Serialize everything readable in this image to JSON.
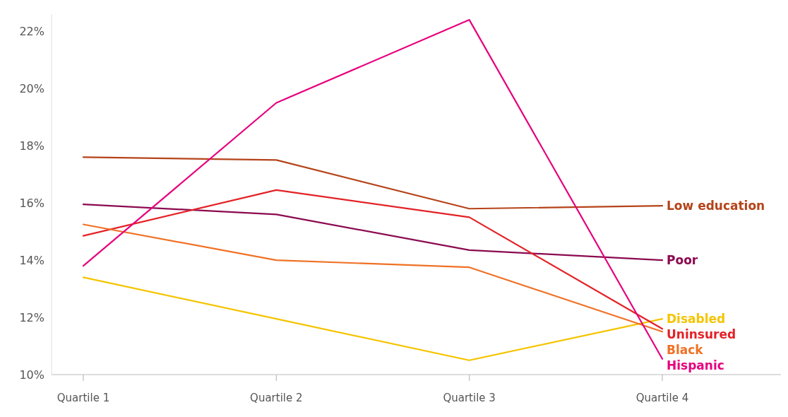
{
  "chart_data": {
    "type": "line",
    "categories": [
      "Quartile 1",
      "Quartile 2",
      "Quartile 3",
      "Quartile 4"
    ],
    "ylim": [
      10,
      22.6
    ],
    "yticks": [
      {
        "value": 10,
        "label": "10%"
      },
      {
        "value": 12,
        "label": "12%"
      },
      {
        "value": 14,
        "label": "14%"
      },
      {
        "value": 16,
        "label": "16%"
      },
      {
        "value": 18,
        "label": "18%"
      },
      {
        "value": 20,
        "label": "20%"
      },
      {
        "value": 22,
        "label": "22%"
      }
    ],
    "grid": false,
    "marker": "none",
    "line_style": "solid",
    "series": [
      {
        "name": "Low education",
        "color": "#b5441a",
        "values": [
          17.6,
          17.5,
          15.8,
          15.9
        ]
      },
      {
        "name": "Poor",
        "color": "#8b0a50",
        "values": [
          15.95,
          15.6,
          14.35,
          14.0
        ]
      },
      {
        "name": "Disabled",
        "color": "#f5c400",
        "values": [
          13.4,
          11.95,
          10.5,
          11.95
        ]
      },
      {
        "name": "Uninsured",
        "color": "#e32227",
        "values": [
          14.85,
          16.45,
          15.5,
          11.6
        ]
      },
      {
        "name": "Black",
        "color": "#f07125",
        "values": [
          15.25,
          14.0,
          13.75,
          11.5
        ]
      },
      {
        "name": "Hispanic",
        "color": "#e6007e",
        "values": [
          13.8,
          19.5,
          22.4,
          10.55
        ]
      }
    ]
  }
}
